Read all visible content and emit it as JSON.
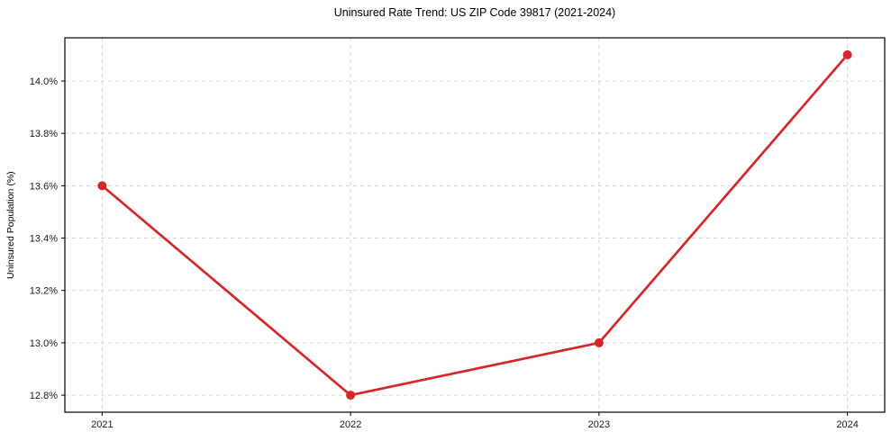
{
  "chart_data": {
    "type": "line",
    "title": "Uninsured Rate Trend: US ZIP Code 39817 (2021-2024)",
    "xlabel": "",
    "ylabel": "Uninsured Population (%)",
    "x": [
      2021,
      2022,
      2023,
      2024
    ],
    "x_tick_labels": [
      "2021",
      "2022",
      "2023",
      "2024"
    ],
    "series": [
      {
        "name": "uninsured-rate",
        "values": [
          13.6,
          12.8,
          13.0,
          14.1
        ]
      }
    ],
    "y_ticks": [
      12.8,
      13.0,
      13.2,
      13.4,
      13.6,
      13.8,
      14.0
    ],
    "y_tick_labels": [
      "12.8%",
      "13.0%",
      "13.2%",
      "13.4%",
      "13.6%",
      "13.8%",
      "14.0%"
    ],
    "ylim": [
      12.735,
      14.165
    ],
    "xlim": [
      2020.85,
      2024.15
    ],
    "grid": true,
    "legend_position": "none",
    "colors": {
      "line": "#d62728",
      "marker": "#d62728",
      "grid": "#cccccc",
      "spine": "#000000",
      "tick_text": "#1a1a1a",
      "background": "#ffffff"
    }
  }
}
